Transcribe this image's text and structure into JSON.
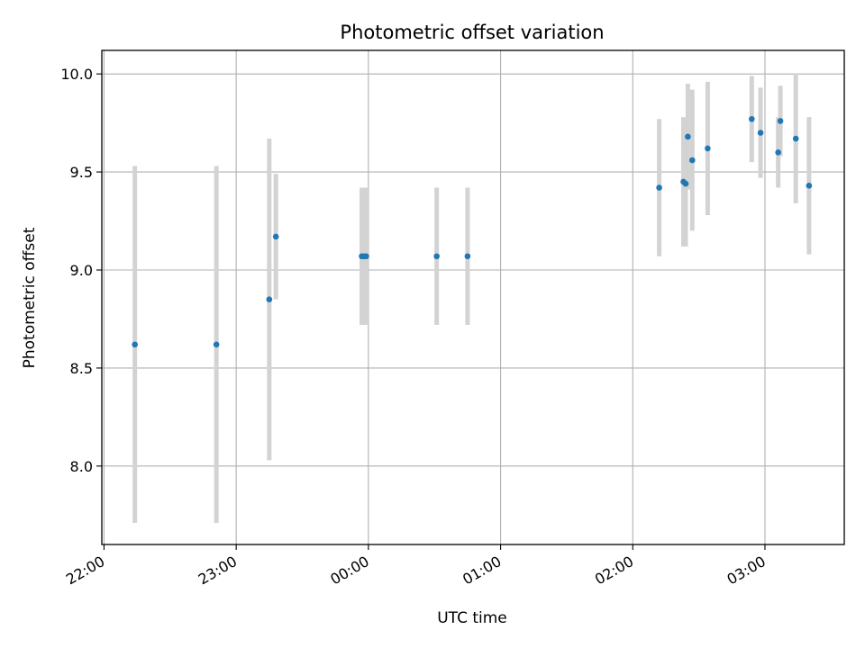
{
  "chart_data": {
    "type": "scatter",
    "title": "Photometric offset variation",
    "xlabel": "UTC time",
    "ylabel": "Photometric offset",
    "x_ticks": [
      "22:00",
      "23:00",
      "00:00",
      "01:00",
      "02:00",
      "03:00"
    ],
    "y_ticks": [
      "8.0",
      "8.5",
      "9.0",
      "9.5",
      "10.0"
    ],
    "xlim": [
      "21:59",
      "03:36"
    ],
    "ylim": [
      7.6,
      10.12
    ],
    "grid": true,
    "points": [
      {
        "x": "22:14",
        "y": 8.62,
        "err": 0.91
      },
      {
        "x": "22:51",
        "y": 8.62,
        "err": 0.91
      },
      {
        "x": "23:15",
        "y": 8.85,
        "err": 0.82
      },
      {
        "x": "23:18",
        "y": 9.17,
        "err": 0.32
      },
      {
        "x": "23:57",
        "y": 9.07,
        "err": 0.35
      },
      {
        "x": "23:58",
        "y": 9.07,
        "err": 0.35
      },
      {
        "x": "23:59",
        "y": 9.07,
        "err": 0.35
      },
      {
        "x": "00:31",
        "y": 9.07,
        "err": 0.35
      },
      {
        "x": "00:45",
        "y": 9.07,
        "err": 0.35
      },
      {
        "x": "02:12",
        "y": 9.42,
        "err": 0.35
      },
      {
        "x": "02:23",
        "y": 9.45,
        "err": 0.33
      },
      {
        "x": "02:24",
        "y": 9.44,
        "err": 0.32
      },
      {
        "x": "02:25",
        "y": 9.68,
        "err": 0.27
      },
      {
        "x": "02:27",
        "y": 9.56,
        "err": 0.36
      },
      {
        "x": "02:34",
        "y": 9.62,
        "err": 0.34
      },
      {
        "x": "02:54",
        "y": 9.77,
        "err": 0.22
      },
      {
        "x": "02:58",
        "y": 9.7,
        "err": 0.23
      },
      {
        "x": "03:06",
        "y": 9.6,
        "err": 0.18
      },
      {
        "x": "03:07",
        "y": 9.76,
        "err": 0.18
      },
      {
        "x": "03:14",
        "y": 9.67,
        "err": 0.33
      },
      {
        "x": "03:20",
        "y": 9.43,
        "err": 0.35
      }
    ],
    "colors": {
      "point": "#1f77b4",
      "errorbar": "#d3d3d3",
      "grid": "#b0b0b0",
      "axis": "#000000"
    }
  }
}
